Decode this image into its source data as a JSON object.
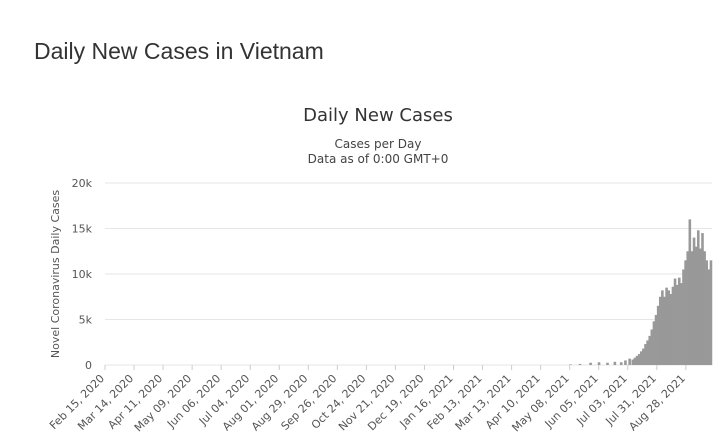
{
  "page": {
    "title": "Daily New Cases in Vietnam"
  },
  "chart_data": {
    "type": "bar",
    "title": "Daily New Cases",
    "subtitle": [
      "Cases per Day",
      "Data as of 0:00 GMT+0"
    ],
    "ylabel": "Novel Coronavirus Daily Cases",
    "xlabel": "",
    "ylim": [
      0,
      20000
    ],
    "yticks": [
      0,
      5000,
      10000,
      15000,
      20000
    ],
    "ytick_labels": [
      "0",
      "5k",
      "10k",
      "15k",
      "20k"
    ],
    "x_range": [
      "2020-02-15",
      "2021-09-12"
    ],
    "xtick_labels": [
      "Feb 15, 2020",
      "Mar 14, 2020",
      "Apr 11, 2020",
      "May 09, 2020",
      "Jun 06, 2020",
      "Jul 04, 2020",
      "Aug 01, 2020",
      "Aug 29, 2020",
      "Sep 26, 2020",
      "Oct 24, 2020",
      "Nov 21, 2020",
      "Dec 19, 2020",
      "Jan 16, 2021",
      "Feb 13, 2021",
      "Mar 13, 2021",
      "Apr 10, 2021",
      "May 08, 2021",
      "Jun 05, 2021",
      "Jul 03, 2021",
      "Jul 31, 2021",
      "Aug 28, 2021"
    ],
    "grid": true,
    "bar_color": "#999999",
    "grid_color": "#e6e6e6",
    "series": [
      {
        "points": [
          [
            "2021-05-01",
            60
          ],
          [
            "2021-05-10",
            120
          ],
          [
            "2021-05-20",
            250
          ],
          [
            "2021-05-28",
            300
          ],
          [
            "2021-06-05",
            250
          ],
          [
            "2021-06-12",
            350
          ],
          [
            "2021-06-18",
            300
          ],
          [
            "2021-06-22",
            500
          ],
          [
            "2021-06-26",
            700
          ],
          [
            "2021-06-29",
            600
          ],
          [
            "2021-07-01",
            800
          ],
          [
            "2021-07-03",
            1000
          ],
          [
            "2021-07-05",
            1200
          ],
          [
            "2021-07-07",
            1500
          ],
          [
            "2021-07-09",
            1800
          ],
          [
            "2021-07-11",
            2300
          ],
          [
            "2021-07-13",
            2700
          ],
          [
            "2021-07-15",
            3200
          ],
          [
            "2021-07-17",
            3900
          ],
          [
            "2021-07-19",
            4800
          ],
          [
            "2021-07-21",
            5500
          ],
          [
            "2021-07-23",
            6500
          ],
          [
            "2021-07-25",
            7500
          ],
          [
            "2021-07-27",
            8200
          ],
          [
            "2021-07-29",
            7500
          ],
          [
            "2021-07-31",
            8500
          ],
          [
            "2021-08-02",
            8200
          ],
          [
            "2021-08-04",
            7800
          ],
          [
            "2021-08-06",
            8600
          ],
          [
            "2021-08-08",
            9500
          ],
          [
            "2021-08-10",
            8800
          ],
          [
            "2021-08-12",
            9600
          ],
          [
            "2021-08-14",
            9000
          ],
          [
            "2021-08-16",
            10500
          ],
          [
            "2021-08-18",
            11500
          ],
          [
            "2021-08-20",
            12500
          ],
          [
            "2021-08-22",
            16000
          ],
          [
            "2021-08-24",
            12500
          ],
          [
            "2021-08-26",
            14000
          ],
          [
            "2021-08-28",
            13000
          ],
          [
            "2021-08-30",
            14800
          ],
          [
            "2021-09-01",
            12800
          ],
          [
            "2021-09-03",
            14500
          ],
          [
            "2021-09-05",
            12500
          ],
          [
            "2021-09-07",
            11500
          ],
          [
            "2021-09-09",
            10500
          ],
          [
            "2021-09-10",
            9000
          ],
          [
            "2021-09-11",
            11500
          ]
        ]
      }
    ]
  }
}
